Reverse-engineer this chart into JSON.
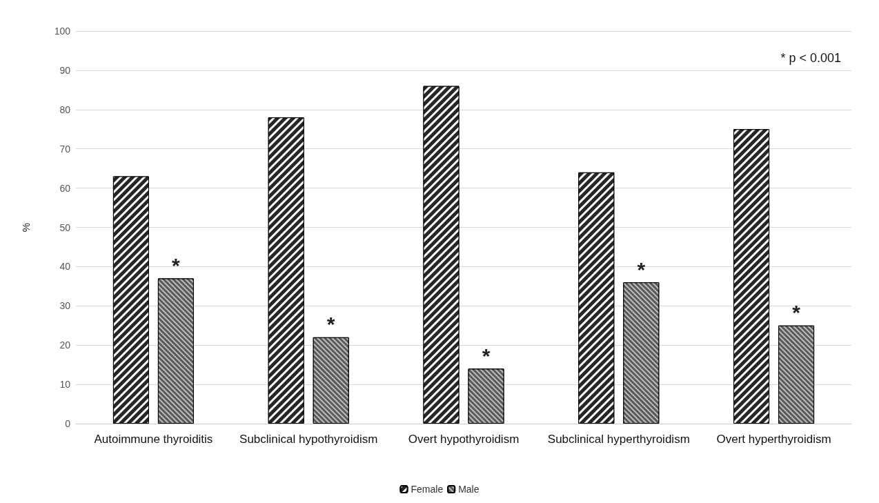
{
  "chart_data": {
    "type": "bar",
    "ylabel": "%",
    "categories": [
      "Autoimmune thyroiditis",
      "Subclinical hypothyroidism",
      "Overt hypothyroidism",
      "Subclinical hyperthyroidism",
      "Overt hyperthyroidism"
    ],
    "series": [
      {
        "name": "Female",
        "color": "#262626",
        "values": [
          63,
          78,
          86,
          64,
          75
        ]
      },
      {
        "name": "Male",
        "color": "#595959",
        "values": [
          37,
          22,
          14,
          36,
          25
        ],
        "value_labels": [
          "*",
          "*",
          "*",
          "*",
          "*"
        ]
      }
    ],
    "ylim": [
      0,
      100
    ],
    "yticks": [
      0,
      10,
      20,
      30,
      40,
      50,
      60,
      70,
      80,
      90,
      100
    ],
    "grid": "y",
    "legend": "bottom",
    "annotations": [
      "* p < 0.001"
    ]
  }
}
